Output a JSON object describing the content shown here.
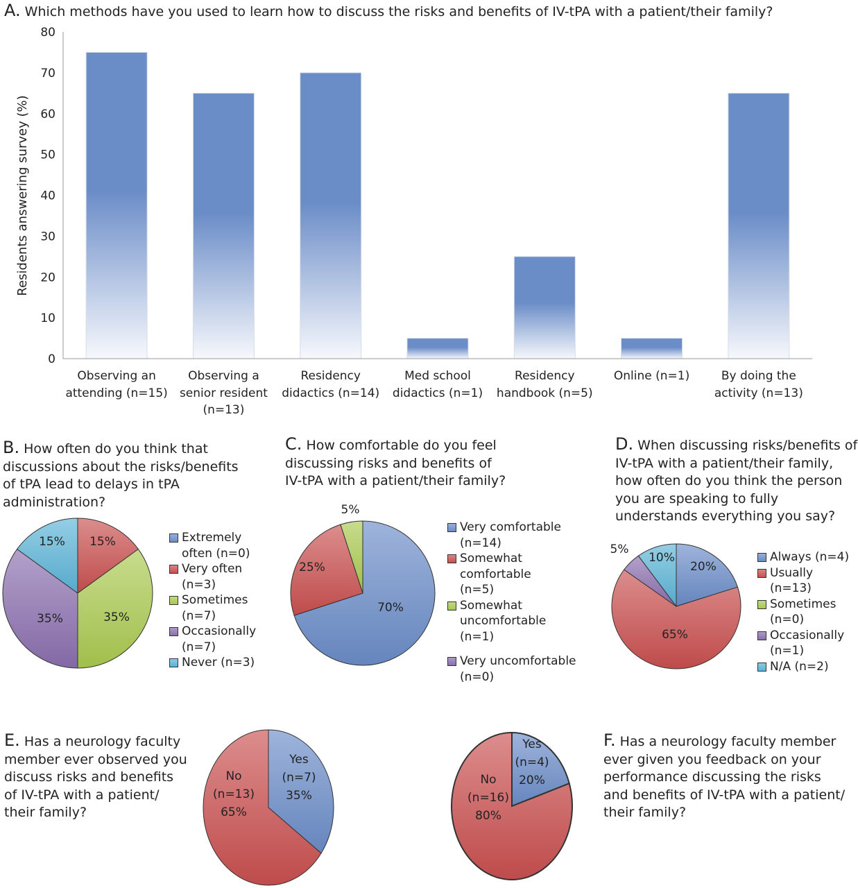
{
  "chart_data": [
    {
      "id": "A",
      "type": "bar",
      "letter": "A.",
      "title": "Which methods have you used to learn how to discuss the risks and benefits of IV-tPA with a patient/their family?",
      "xlabel": "",
      "ylabel": "Residents answering survey (%)",
      "ylim": [
        0,
        80
      ],
      "yticks": [
        0,
        10,
        20,
        30,
        40,
        50,
        60,
        70,
        80
      ],
      "grid": false,
      "categories": [
        [
          "Observing an",
          "attending (n=15)"
        ],
        [
          "Observing a",
          "senior resident",
          "(n=13)"
        ],
        [
          "Residency",
          "didactics (n=14)"
        ],
        [
          "Med school",
          "didactics (n=1)"
        ],
        [
          "Residency",
          "handbook (n=5)"
        ],
        [
          "Online (n=1)"
        ],
        [
          "By doing the",
          "activity (n=13)"
        ]
      ],
      "values": [
        75,
        65,
        70,
        5,
        25,
        5,
        65
      ],
      "color": "#6a8cc7"
    },
    {
      "id": "B",
      "type": "pie",
      "letter": "B.",
      "title_lines": [
        "How often do you think that",
        "discussions about the risks/benefits",
        "of tPA lead to delays in tPA",
        "administration?"
      ],
      "slices": [
        {
          "name": "Extremely often",
          "n": 0,
          "percent": 0,
          "label": "",
          "color": "#6a8cc7"
        },
        {
          "name": "Very often",
          "n": 3,
          "percent": 15,
          "label": "15%",
          "color": "#c94f4f"
        },
        {
          "name": "Sometimes",
          "n": 7,
          "percent": 35,
          "label": "35%",
          "color": "#a9c94f"
        },
        {
          "name": "Occasionally",
          "n": 7,
          "percent": 35,
          "label": "35%",
          "color": "#8a6fae"
        },
        {
          "name": "Never",
          "n": 3,
          "percent": 15,
          "label": "15%",
          "color": "#5bb3d6"
        }
      ],
      "legend": [
        {
          "lines": [
            "Extremely",
            "often (n=0)"
          ],
          "color": "#6a8cc7"
        },
        {
          "lines": [
            "Very often",
            "(n=3)"
          ],
          "color": "#c94f4f"
        },
        {
          "lines": [
            "Sometimes",
            "(n=7)"
          ],
          "color": "#a9c94f"
        },
        {
          "lines": [
            "Occasionally",
            "(n=7)"
          ],
          "color": "#8a6fae"
        },
        {
          "lines": [
            "Never (n=3)"
          ],
          "color": "#5bb3d6"
        }
      ],
      "legend_position": "right"
    },
    {
      "id": "C",
      "type": "pie",
      "letter": "C.",
      "title_lines": [
        "How comfortable do you feel",
        "discussing risks and benefits of",
        "IV-tPA with a patient/their family?"
      ],
      "slices": [
        {
          "name": "Very comfortable",
          "n": 14,
          "percent": 70,
          "label": "70%",
          "color": "#6a8cc7"
        },
        {
          "name": "Somewhat comfortable",
          "n": 5,
          "percent": 25,
          "label": "25%",
          "color": "#c94f4f"
        },
        {
          "name": "Somewhat uncomfortable",
          "n": 1,
          "percent": 5,
          "label": "5%",
          "color": "#a9c94f"
        },
        {
          "name": "Very uncomfortable",
          "n": 0,
          "percent": 0,
          "label": "",
          "color": "#8a6fae"
        }
      ],
      "legend": [
        {
          "lines": [
            "Very comfortable",
            "(n=14)"
          ],
          "color": "#6a8cc7"
        },
        {
          "lines": [
            "Somewhat",
            "comfortable",
            "(n=5)"
          ],
          "color": "#c94f4f"
        },
        {
          "lines": [
            "Somewhat",
            "uncomfortable",
            "(n=1)"
          ],
          "color": "#a9c94f"
        },
        {
          "lines": [
            "Very uncomfortable",
            "(n=0)"
          ],
          "color": "#8a6fae"
        }
      ],
      "legend_position": "right"
    },
    {
      "id": "D",
      "type": "pie",
      "letter": "D.",
      "title_lines": [
        "When discussing risks/benefits of",
        "IV-tPA with a patient/their family,",
        "how often do you think the person",
        "you are speaking to fully",
        "understands everything you say?"
      ],
      "slices": [
        {
          "name": "Always",
          "n": 4,
          "percent": 20,
          "label": "20%",
          "color": "#6a8cc7"
        },
        {
          "name": "Usually",
          "n": 13,
          "percent": 65,
          "label": "65%",
          "color": "#c94f4f"
        },
        {
          "name": "Sometimes",
          "n": 0,
          "percent": 0,
          "label": "",
          "color": "#a9c94f"
        },
        {
          "name": "Occasionally",
          "n": 1,
          "percent": 5,
          "label": "5%",
          "color": "#8a6fae"
        },
        {
          "name": "N/A",
          "n": 2,
          "percent": 10,
          "label": "10%",
          "color": "#5bb3d6"
        }
      ],
      "legend": [
        {
          "lines": [
            "Always (n=4)"
          ],
          "color": "#6a8cc7"
        },
        {
          "lines": [
            "Usually",
            "(n=13)"
          ],
          "color": "#c94f4f"
        },
        {
          "lines": [
            "Sometimes",
            "(n=0)"
          ],
          "color": "#a9c94f"
        },
        {
          "lines": [
            "Occasionally",
            "(n=1)"
          ],
          "color": "#8a6fae"
        },
        {
          "lines": [
            "N/A (n=2)"
          ],
          "color": "#5bb3d6"
        }
      ],
      "legend_position": "right"
    },
    {
      "id": "E",
      "type": "pie",
      "letter": "E.",
      "title_lines": [
        "Has a neurology faculty",
        "member ever observed you",
        "discuss risks and benefits",
        "of IV-tPA with a patient/",
        "their family?"
      ],
      "slices": [
        {
          "name": "Yes",
          "n": 7,
          "percent": 35,
          "label_lines": [
            "Yes",
            "(n=7)",
            "35%"
          ],
          "color": "#6a8cc7"
        },
        {
          "name": "No",
          "n": 13,
          "percent": 65,
          "label_lines": [
            "No",
            "(n=13)",
            "65%"
          ],
          "color": "#c94f4f"
        }
      ]
    },
    {
      "id": "F",
      "type": "pie",
      "letter": "F.",
      "title_lines": [
        "Has a neurology faculty member",
        "ever given you feedback on your",
        "performance discussing the risks",
        "and benefits of IV-tPA with a patient/",
        "their family?"
      ],
      "slices": [
        {
          "name": "Yes",
          "n": 4,
          "percent": 20,
          "label_lines": [
            "Yes",
            "(n=4)",
            "20%"
          ],
          "color": "#6a8cc7"
        },
        {
          "name": "No",
          "n": 16,
          "percent": 80,
          "label_lines": [
            "No",
            "(n=16)",
            "80%"
          ],
          "color": "#c94f4f"
        }
      ]
    }
  ]
}
